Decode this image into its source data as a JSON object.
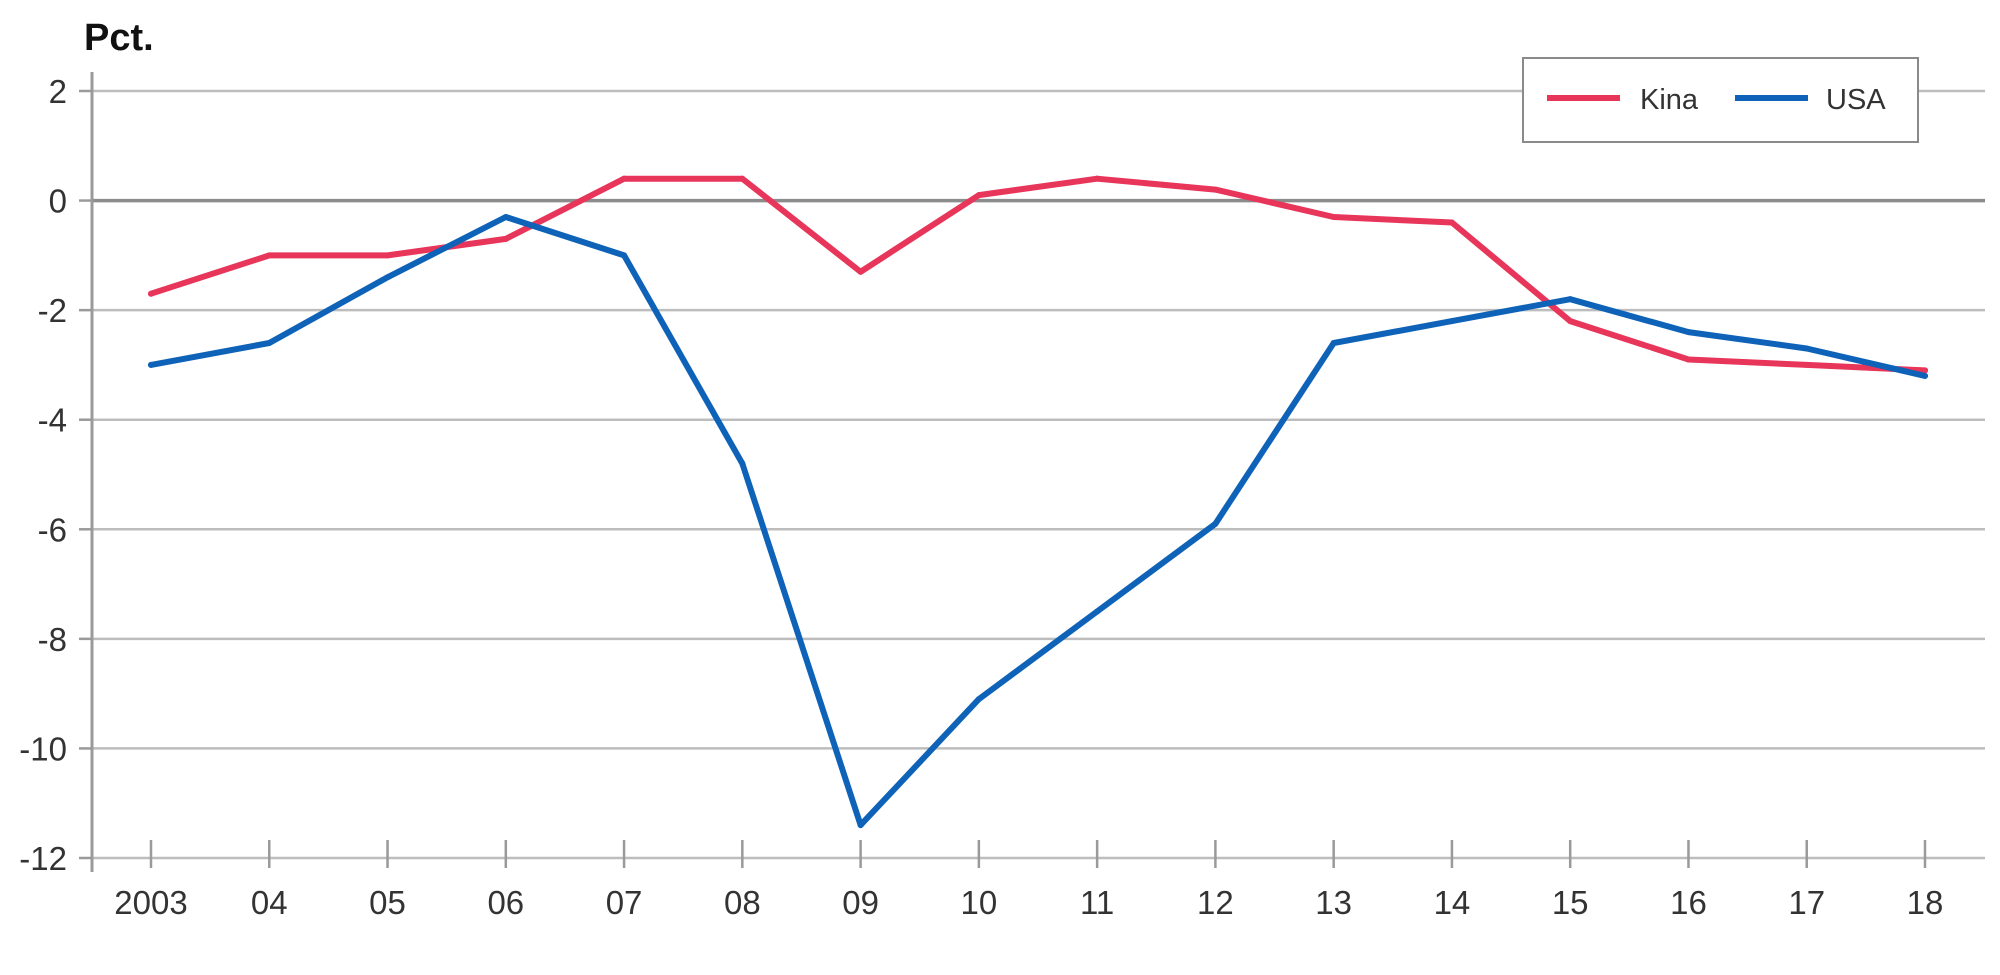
{
  "chart_data": {
    "type": "line",
    "ylabel": "Pct.",
    "xlabel": "",
    "title": "",
    "categories": [
      "2003",
      "04",
      "05",
      "06",
      "07",
      "08",
      "09",
      "10",
      "11",
      "12",
      "13",
      "14",
      "15",
      "16",
      "17",
      "18"
    ],
    "ylim": [
      -12,
      2
    ],
    "yticks": [
      2,
      0,
      -2,
      -4,
      -6,
      -8,
      -10,
      -12
    ],
    "grid": true,
    "legend_position": "top-right",
    "series": [
      {
        "name": "Kina",
        "color": "#e8355a",
        "values": [
          -1.7,
          -1.0,
          -1.0,
          -0.7,
          0.4,
          0.4,
          -1.3,
          0.1,
          0.4,
          0.2,
          -0.3,
          -0.4,
          -2.2,
          -2.9,
          -3.0,
          -3.1
        ]
      },
      {
        "name": "USA",
        "color": "#0e63b8",
        "values": [
          -3.0,
          -2.6,
          -1.4,
          -0.3,
          -1.0,
          -4.8,
          -11.4,
          -9.1,
          -7.5,
          -5.9,
          -2.6,
          -2.2,
          -1.8,
          -2.4,
          -2.7,
          -3.2
        ]
      }
    ]
  }
}
